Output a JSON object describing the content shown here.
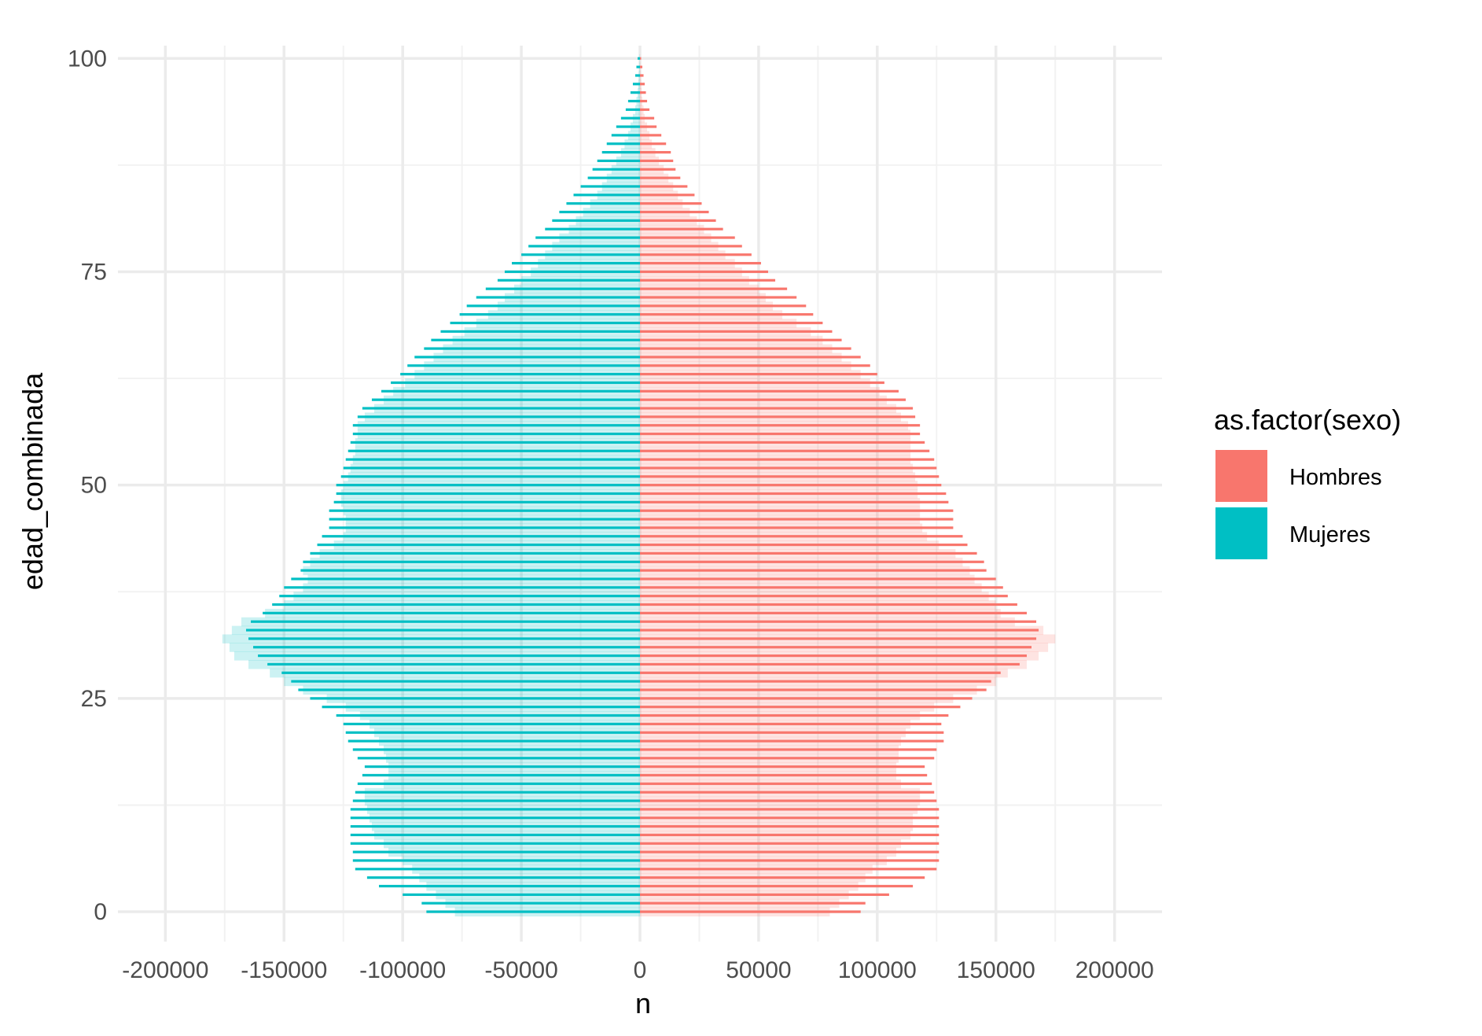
{
  "chart_data": {
    "type": "bar",
    "orientation": "horizontal",
    "xlabel": "n",
    "ylabel": "edad_combinada",
    "xlim": [
      -220000,
      220000
    ],
    "ylim": [
      -3.5,
      101.5
    ],
    "x_ticks": [
      -200000,
      -150000,
      -100000,
      -50000,
      0,
      50000,
      100000,
      150000,
      200000
    ],
    "x_tick_labels": [
      "-200000",
      "-150000",
      "-100000",
      "-50000",
      "0",
      "50000",
      "100000",
      "150000",
      "200000"
    ],
    "y_ticks": [
      0,
      25,
      50,
      75,
      100
    ],
    "y_tick_labels": [
      "0",
      "25",
      "50",
      "75",
      "100"
    ],
    "grid": true,
    "legend": {
      "title": "as.factor(sexo)",
      "position": "right",
      "entries": [
        {
          "label": "Hombres",
          "color": "#F8766D"
        },
        {
          "label": "Mujeres",
          "color": "#00BFC4"
        }
      ]
    },
    "ages": [
      0,
      1,
      2,
      3,
      4,
      5,
      6,
      7,
      8,
      9,
      10,
      11,
      12,
      13,
      14,
      15,
      16,
      17,
      18,
      19,
      20,
      21,
      22,
      23,
      24,
      25,
      26,
      27,
      28,
      29,
      30,
      31,
      32,
      33,
      34,
      35,
      36,
      37,
      38,
      39,
      40,
      41,
      42,
      43,
      44,
      45,
      46,
      47,
      48,
      49,
      50,
      51,
      52,
      53,
      54,
      55,
      56,
      57,
      58,
      59,
      60,
      61,
      62,
      63,
      64,
      65,
      66,
      67,
      68,
      69,
      70,
      71,
      72,
      73,
      74,
      75,
      76,
      77,
      78,
      79,
      80,
      81,
      82,
      83,
      84,
      85,
      86,
      87,
      88,
      89,
      90,
      91,
      92,
      93,
      94,
      95,
      96,
      97,
      98,
      99,
      100
    ],
    "series": [
      {
        "name": "Hombres",
        "color": "#F8766D",
        "values": [
          93000,
          95000,
          105000,
          115000,
          120000,
          125000,
          126000,
          126000,
          126000,
          126000,
          126000,
          126000,
          126000,
          125000,
          124000,
          123000,
          121000,
          120000,
          124000,
          125000,
          128000,
          128000,
          127000,
          130000,
          135000,
          140000,
          146000,
          148000,
          152000,
          160000,
          163000,
          165000,
          167000,
          168000,
          167000,
          163000,
          159000,
          155000,
          153000,
          150000,
          146000,
          145000,
          142000,
          138000,
          136000,
          132000,
          132000,
          132000,
          130000,
          129000,
          127000,
          126000,
          125000,
          124000,
          122000,
          120000,
          118000,
          118000,
          116000,
          115000,
          112000,
          109000,
          103000,
          100000,
          97000,
          93000,
          89000,
          85000,
          81000,
          77000,
          73000,
          70000,
          66000,
          62000,
          57000,
          54000,
          51000,
          47000,
          43000,
          40000,
          35000,
          32000,
          29000,
          26000,
          23000,
          20000,
          17000,
          15000,
          14000,
          13000,
          11000,
          9000,
          7000,
          6000,
          4000,
          3000,
          2500,
          2000,
          1500,
          1000,
          500
        ]
      },
      {
        "name": "Mujeres",
        "values": [
          -90000,
          -92000,
          -100000,
          -110000,
          -115000,
          -120000,
          -121000,
          -121000,
          -122000,
          -122000,
          -122000,
          -122000,
          -122000,
          -121000,
          -120000,
          -119000,
          -117000,
          -116000,
          -119000,
          -121000,
          -123000,
          -124000,
          -125000,
          -128000,
          -134000,
          -139000,
          -144000,
          -147000,
          -151000,
          -157000,
          -161000,
          -163000,
          -165000,
          -166000,
          -164000,
          -159000,
          -155000,
          -152000,
          -150000,
          -147000,
          -143000,
          -142000,
          -139000,
          -136000,
          -134000,
          -131000,
          -131000,
          -131000,
          -129000,
          -128000,
          -128000,
          -126000,
          -125000,
          -124000,
          -123000,
          -122000,
          -121000,
          -121000,
          -119000,
          -117000,
          -113000,
          -109000,
          -105000,
          -101000,
          -98000,
          -95000,
          -91000,
          -88000,
          -84000,
          -80000,
          -76000,
          -73000,
          -69000,
          -65000,
          -60000,
          -57000,
          -54000,
          -50000,
          -47000,
          -44000,
          -40000,
          -37000,
          -34000,
          -31000,
          -28000,
          -25000,
          -22000,
          -20000,
          -18000,
          -16000,
          -14000,
          -12000,
          -10000,
          -8000,
          -6000,
          -5000,
          -4000,
          -3000,
          -2000,
          -1500,
          -1000
        ],
        "color": "#00BFC4"
      }
    ],
    "background_series": [
      {
        "name": "Hombres",
        "color": "#F8766D",
        "values": [
          80000,
          84000,
          88000,
          92000,
          95000,
          98000,
          104000,
          108000,
          110000,
          114000,
          115000,
          115000,
          117000,
          118000,
          118000,
          110000,
          108000,
          108000,
          109000,
          109000,
          110000,
          112000,
          114000,
          118000,
          124000,
          132000,
          142000,
          150000,
          155000,
          163000,
          168000,
          172000,
          175000,
          170000,
          158000,
          152000,
          150000,
          147000,
          144000,
          141000,
          139000,
          136000,
          133000,
          126000,
          121000,
          119000,
          118000,
          118000,
          118000,
          117000,
          117000,
          116000,
          115000,
          114000,
          114000,
          114000,
          114000,
          113000,
          110000,
          108000,
          104000,
          101000,
          97000,
          93000,
          89000,
          85000,
          81000,
          77000,
          72000,
          66000,
          60000,
          56000,
          53000,
          50000,
          46000,
          43000,
          40000,
          36000,
          33000,
          30000,
          27000,
          24000,
          21000,
          18000,
          16000,
          14000,
          12000,
          10000,
          8000,
          6500,
          5000,
          4000,
          3000,
          2000,
          1500,
          1000,
          700,
          500,
          300,
          200,
          100
        ]
      },
      {
        "name": "Mujeres",
        "color": "#00BFC4",
        "values": [
          -78000,
          -82000,
          -86000,
          -90000,
          -93000,
          -96000,
          -100000,
          -106000,
          -108000,
          -112000,
          -113000,
          -114000,
          -115000,
          -116000,
          -116000,
          -108000,
          -106000,
          -106000,
          -107000,
          -108000,
          -110000,
          -112000,
          -114000,
          -118000,
          -124000,
          -132000,
          -142000,
          -150000,
          -156000,
          -165000,
          -171000,
          -173000,
          -176000,
          -172000,
          -168000,
          -158000,
          -150000,
          -146000,
          -142000,
          -140000,
          -142000,
          -139000,
          -135000,
          -129000,
          -125000,
          -124000,
          -124000,
          -125000,
          -126000,
          -126000,
          -125000,
          -123000,
          -122000,
          -121000,
          -120000,
          -120000,
          -119000,
          -119000,
          -116000,
          -112000,
          -108000,
          -104000,
          -99000,
          -95000,
          -91000,
          -87000,
          -83000,
          -79000,
          -74000,
          -69000,
          -64000,
          -60000,
          -57000,
          -53000,
          -50000,
          -46000,
          -43000,
          -40000,
          -37000,
          -34000,
          -30000,
          -27000,
          -24000,
          -21000,
          -18000,
          -16000,
          -14000,
          -12000,
          -10000,
          -8000,
          -6500,
          -5000,
          -4000,
          -3000,
          -2000,
          -1500,
          -1000,
          -700,
          -500,
          -300,
          -200
        ]
      }
    ]
  }
}
